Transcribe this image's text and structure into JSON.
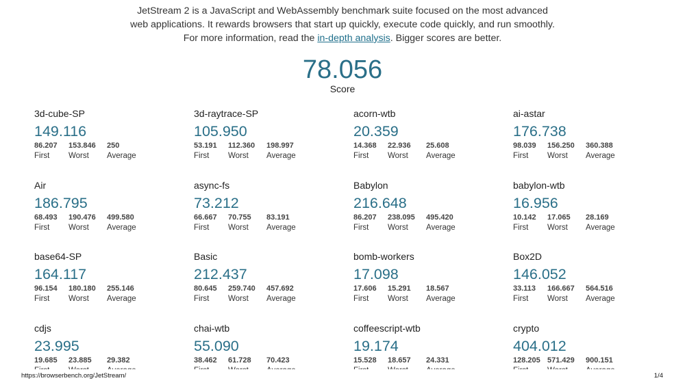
{
  "intro": {
    "line1": "JetStream 2 is a JavaScript and WebAssembly benchmark suite focused on the most advanced",
    "line2": "web applications. It rewards browsers that start up quickly, execute code quickly, and run smoothly.",
    "line3_before": "For more information, read the ",
    "line3_link": "in-depth analysis",
    "line3_after": ". Bigger scores are better."
  },
  "score": {
    "value": "78.056",
    "label": "Score"
  },
  "stat_labels": {
    "first": "First",
    "worst": "Worst",
    "average": "Average"
  },
  "benchmarks": [
    {
      "name": "3d-cube-SP",
      "score": "149.116",
      "first": "86.207",
      "worst": "153.846",
      "average": "250"
    },
    {
      "name": "3d-raytrace-SP",
      "score": "105.950",
      "first": "53.191",
      "worst": "112.360",
      "average": "198.997"
    },
    {
      "name": "acorn-wtb",
      "score": "20.359",
      "first": "14.368",
      "worst": "22.936",
      "average": "25.608"
    },
    {
      "name": "ai-astar",
      "score": "176.738",
      "first": "98.039",
      "worst": "156.250",
      "average": "360.388"
    },
    {
      "name": "Air",
      "score": "186.795",
      "first": "68.493",
      "worst": "190.476",
      "average": "499.580"
    },
    {
      "name": "async-fs",
      "score": "73.212",
      "first": "66.667",
      "worst": "70.755",
      "average": "83.191"
    },
    {
      "name": "Babylon",
      "score": "216.648",
      "first": "86.207",
      "worst": "238.095",
      "average": "495.420"
    },
    {
      "name": "babylon-wtb",
      "score": "16.956",
      "first": "10.142",
      "worst": "17.065",
      "average": "28.169"
    },
    {
      "name": "base64-SP",
      "score": "164.117",
      "first": "96.154",
      "worst": "180.180",
      "average": "255.146"
    },
    {
      "name": "Basic",
      "score": "212.437",
      "first": "80.645",
      "worst": "259.740",
      "average": "457.692"
    },
    {
      "name": "bomb-workers",
      "score": "17.098",
      "first": "17.606",
      "worst": "15.291",
      "average": "18.567"
    },
    {
      "name": "Box2D",
      "score": "146.052",
      "first": "33.113",
      "worst": "166.667",
      "average": "564.516"
    },
    {
      "name": "cdjs",
      "score": "23.995",
      "first": "19.685",
      "worst": "23.885",
      "average": "29.382"
    },
    {
      "name": "chai-wtb",
      "score": "55.090",
      "first": "38.462",
      "worst": "61.728",
      "average": "70.423"
    },
    {
      "name": "coffeescript-wtb",
      "score": "19.174",
      "first": "15.528",
      "worst": "18.657",
      "average": "24.331"
    },
    {
      "name": "crypto",
      "score": "404.012",
      "first": "128.205",
      "worst": "571.429",
      "average": "900.151"
    }
  ],
  "footer": {
    "url": "https://browserbench.org/JetStream/",
    "page": "1/4"
  }
}
